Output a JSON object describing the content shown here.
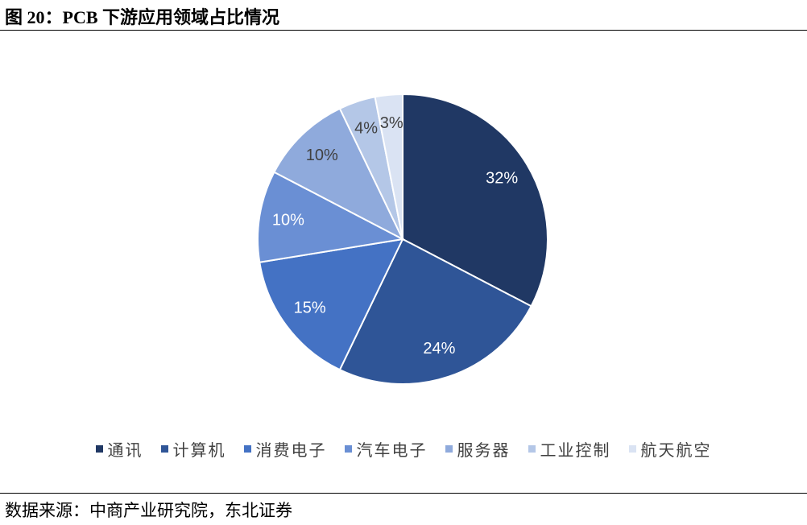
{
  "chart_data": {
    "type": "pie",
    "title": "图 20：PCB 下游应用领域占比情况",
    "source": "数据来源：中商产业研究院，东北证券",
    "categories": [
      "通讯",
      "计算机",
      "消费电子",
      "汽车电子",
      "服务器",
      "工业控制",
      "航天航空"
    ],
    "values": [
      32,
      24,
      15,
      10,
      10,
      4,
      3
    ],
    "value_labels": [
      "32%",
      "24%",
      "15%",
      "10%",
      "10%",
      "4%",
      "3%"
    ],
    "colors": [
      "#203864",
      "#2f5597",
      "#4472c4",
      "#6a8fd4",
      "#8faadc",
      "#b4c7e7",
      "#dae3f3"
    ]
  }
}
